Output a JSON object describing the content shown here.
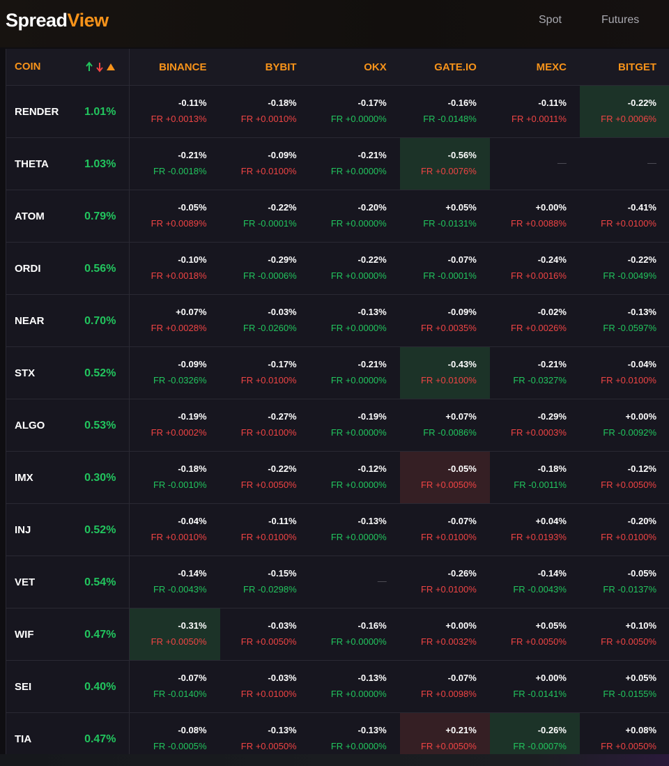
{
  "header": {
    "brand_a": "Spread",
    "brand_b": "View",
    "nav": [
      "Spot",
      "Futures"
    ]
  },
  "table": {
    "coin_header": "COIN",
    "exchanges": [
      "BINANCE",
      "BYBIT",
      "OKX",
      "GATE.IO",
      "MEXC",
      "BITGET"
    ],
    "colors": {
      "g": "#22c55e",
      "r": "#ef4444",
      "hl_g": "#1c3328",
      "hl_r": "#351f24"
    },
    "rows": [
      {
        "coin": "RENDER",
        "spread": "1.01%",
        "cells": [
          {
            "p": "-0.11%",
            "fr": "FR +0.0013%",
            "c": "r"
          },
          {
            "p": "-0.18%",
            "fr": "FR +0.0010%",
            "c": "r"
          },
          {
            "p": "-0.17%",
            "fr": "FR +0.0000%",
            "c": "g"
          },
          {
            "p": "-0.16%",
            "fr": "FR -0.0148%",
            "c": "g"
          },
          {
            "p": "-0.11%",
            "fr": "FR +0.0011%",
            "c": "r"
          },
          {
            "p": "-0.22%",
            "fr": "FR +0.0006%",
            "c": "r",
            "hl": "hl_g"
          }
        ]
      },
      {
        "coin": "THETA",
        "spread": "1.03%",
        "cells": [
          {
            "p": "-0.21%",
            "fr": "FR -0.0018%",
            "c": "g"
          },
          {
            "p": "-0.09%",
            "fr": "FR +0.0100%",
            "c": "r"
          },
          {
            "p": "-0.21%",
            "fr": "FR +0.0000%",
            "c": "g"
          },
          {
            "p": "-0.56%",
            "fr": "FR +0.0076%",
            "c": "r",
            "hl": "hl_g"
          },
          "—",
          "—"
        ]
      },
      {
        "coin": "ATOM",
        "spread": "0.79%",
        "cells": [
          {
            "p": "-0.05%",
            "fr": "FR +0.0089%",
            "c": "r"
          },
          {
            "p": "-0.22%",
            "fr": "FR -0.0001%",
            "c": "g"
          },
          {
            "p": "-0.20%",
            "fr": "FR +0.0000%",
            "c": "g"
          },
          {
            "p": "+0.05%",
            "fr": "FR -0.0131%",
            "c": "g"
          },
          {
            "p": "+0.00%",
            "fr": "FR +0.0088%",
            "c": "r"
          },
          {
            "p": "-0.41%",
            "fr": "FR +0.0100%",
            "c": "r"
          }
        ]
      },
      {
        "coin": "ORDI",
        "spread": "0.56%",
        "cells": [
          {
            "p": "-0.10%",
            "fr": "FR +0.0018%",
            "c": "r"
          },
          {
            "p": "-0.29%",
            "fr": "FR -0.0006%",
            "c": "g"
          },
          {
            "p": "-0.22%",
            "fr": "FR +0.0000%",
            "c": "g"
          },
          {
            "p": "-0.07%",
            "fr": "FR -0.0001%",
            "c": "g"
          },
          {
            "p": "-0.24%",
            "fr": "FR +0.0016%",
            "c": "r"
          },
          {
            "p": "-0.22%",
            "fr": "FR -0.0049%",
            "c": "g"
          }
        ]
      },
      {
        "coin": "NEAR",
        "spread": "0.70%",
        "cells": [
          {
            "p": "+0.07%",
            "fr": "FR +0.0028%",
            "c": "r"
          },
          {
            "p": "-0.03%",
            "fr": "FR -0.0260%",
            "c": "g"
          },
          {
            "p": "-0.13%",
            "fr": "FR +0.0000%",
            "c": "g"
          },
          {
            "p": "-0.09%",
            "fr": "FR +0.0035%",
            "c": "r"
          },
          {
            "p": "-0.02%",
            "fr": "FR +0.0026%",
            "c": "r"
          },
          {
            "p": "-0.13%",
            "fr": "FR -0.0597%",
            "c": "g"
          }
        ]
      },
      {
        "coin": "STX",
        "spread": "0.52%",
        "cells": [
          {
            "p": "-0.09%",
            "fr": "FR -0.0326%",
            "c": "g"
          },
          {
            "p": "-0.17%",
            "fr": "FR +0.0100%",
            "c": "r"
          },
          {
            "p": "-0.21%",
            "fr": "FR +0.0000%",
            "c": "g"
          },
          {
            "p": "-0.43%",
            "fr": "FR +0.0100%",
            "c": "r",
            "hl": "hl_g"
          },
          {
            "p": "-0.21%",
            "fr": "FR -0.0327%",
            "c": "g"
          },
          {
            "p": "-0.04%",
            "fr": "FR +0.0100%",
            "c": "r"
          }
        ]
      },
      {
        "coin": "ALGO",
        "spread": "0.53%",
        "cells": [
          {
            "p": "-0.19%",
            "fr": "FR +0.0002%",
            "c": "r"
          },
          {
            "p": "-0.27%",
            "fr": "FR +0.0100%",
            "c": "r"
          },
          {
            "p": "-0.19%",
            "fr": "FR +0.0000%",
            "c": "g"
          },
          {
            "p": "+0.07%",
            "fr": "FR -0.0086%",
            "c": "g"
          },
          {
            "p": "-0.29%",
            "fr": "FR +0.0003%",
            "c": "r"
          },
          {
            "p": "+0.00%",
            "fr": "FR -0.0092%",
            "c": "g"
          }
        ]
      },
      {
        "coin": "IMX",
        "spread": "0.30%",
        "cells": [
          {
            "p": "-0.18%",
            "fr": "FR -0.0010%",
            "c": "g"
          },
          {
            "p": "-0.22%",
            "fr": "FR +0.0050%",
            "c": "r"
          },
          {
            "p": "-0.12%",
            "fr": "FR +0.0000%",
            "c": "g"
          },
          {
            "p": "-0.05%",
            "fr": "FR +0.0050%",
            "c": "r",
            "hl": "hl_r"
          },
          {
            "p": "-0.18%",
            "fr": "FR -0.0011%",
            "c": "g"
          },
          {
            "p": "-0.12%",
            "fr": "FR +0.0050%",
            "c": "r"
          }
        ]
      },
      {
        "coin": "INJ",
        "spread": "0.52%",
        "cells": [
          {
            "p": "-0.04%",
            "fr": "FR +0.0010%",
            "c": "r"
          },
          {
            "p": "-0.11%",
            "fr": "FR +0.0100%",
            "c": "r"
          },
          {
            "p": "-0.13%",
            "fr": "FR +0.0000%",
            "c": "g"
          },
          {
            "p": "-0.07%",
            "fr": "FR +0.0100%",
            "c": "r"
          },
          {
            "p": "+0.04%",
            "fr": "FR +0.0193%",
            "c": "r"
          },
          {
            "p": "-0.20%",
            "fr": "FR +0.0100%",
            "c": "r"
          }
        ]
      },
      {
        "coin": "VET",
        "spread": "0.54%",
        "cells": [
          {
            "p": "-0.14%",
            "fr": "FR -0.0043%",
            "c": "g"
          },
          {
            "p": "-0.15%",
            "fr": "FR -0.0298%",
            "c": "g"
          },
          "—",
          {
            "p": "-0.26%",
            "fr": "FR +0.0100%",
            "c": "r"
          },
          {
            "p": "-0.14%",
            "fr": "FR -0.0043%",
            "c": "g"
          },
          {
            "p": "-0.05%",
            "fr": "FR -0.0137%",
            "c": "g"
          }
        ]
      },
      {
        "coin": "WIF",
        "spread": "0.47%",
        "cells": [
          {
            "p": "-0.31%",
            "fr": "FR +0.0050%",
            "c": "r",
            "hl": "hl_g"
          },
          {
            "p": "-0.03%",
            "fr": "FR +0.0050%",
            "c": "r"
          },
          {
            "p": "-0.16%",
            "fr": "FR +0.0000%",
            "c": "g"
          },
          {
            "p": "+0.00%",
            "fr": "FR +0.0032%",
            "c": "r"
          },
          {
            "p": "+0.05%",
            "fr": "FR +0.0050%",
            "c": "r"
          },
          {
            "p": "+0.10%",
            "fr": "FR +0.0050%",
            "c": "r"
          }
        ]
      },
      {
        "coin": "SEI",
        "spread": "0.40%",
        "cells": [
          {
            "p": "-0.07%",
            "fr": "FR -0.0140%",
            "c": "g"
          },
          {
            "p": "-0.03%",
            "fr": "FR +0.0100%",
            "c": "r"
          },
          {
            "p": "-0.13%",
            "fr": "FR +0.0000%",
            "c": "g"
          },
          {
            "p": "-0.07%",
            "fr": "FR +0.0098%",
            "c": "r"
          },
          {
            "p": "+0.00%",
            "fr": "FR -0.0141%",
            "c": "g"
          },
          {
            "p": "+0.05%",
            "fr": "FR -0.0155%",
            "c": "g"
          }
        ]
      },
      {
        "coin": "TIA",
        "spread": "0.47%",
        "cells": [
          {
            "p": "-0.08%",
            "fr": "FR -0.0005%",
            "c": "g"
          },
          {
            "p": "-0.13%",
            "fr": "FR +0.0050%",
            "c": "r"
          },
          {
            "p": "-0.13%",
            "fr": "FR +0.0000%",
            "c": "g"
          },
          {
            "p": "+0.21%",
            "fr": "FR +0.0050%",
            "c": "r",
            "hl": "hl_r"
          },
          {
            "p": "-0.26%",
            "fr": "FR -0.0007%",
            "c": "g",
            "hl": "hl_g"
          },
          {
            "p": "+0.08%",
            "fr": "FR +0.0050%",
            "c": "r"
          }
        ]
      }
    ]
  }
}
